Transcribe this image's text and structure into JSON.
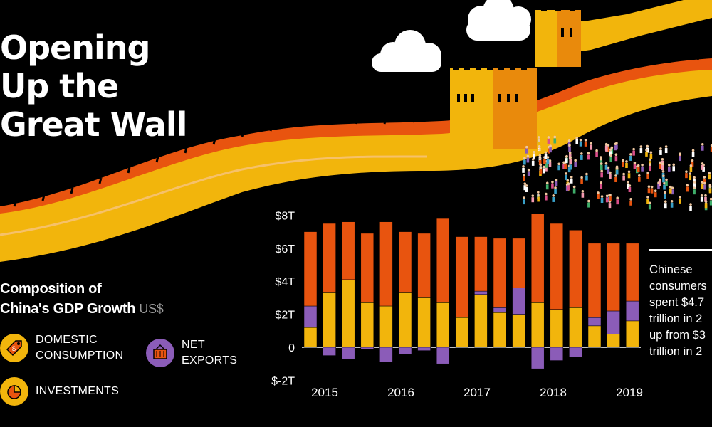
{
  "title": {
    "line1": "Opening",
    "line2": "Up the",
    "line3": "Great Wall"
  },
  "subtitle": {
    "line1": "Composition of",
    "line2": "China's GDP Growth",
    "unit": "US$"
  },
  "legend": [
    {
      "key": "domestic",
      "line1": "DOMESTIC",
      "line2": "CONSUMPTION",
      "color": "#e8540f",
      "icon": "price-tag-icon"
    },
    {
      "key": "net_exports",
      "line1": "NET",
      "line2": "EXPORTS",
      "color": "#8b5cb8",
      "icon": "shipping-container-icon"
    },
    {
      "key": "investments",
      "line1": "INVESTMENTS",
      "line2": "",
      "color": "#f2b50c",
      "icon": "pie-chart-icon"
    }
  ],
  "callout": {
    "line1": "Chinese",
    "line2": "consumers",
    "line3": "spent $4.7",
    "line4": "trillion in 2",
    "line5": "up from $3",
    "line6": "trillion in 2"
  },
  "chart_data": {
    "type": "bar",
    "stacked": true,
    "ylim": [
      -2,
      8
    ],
    "y_ticks": [
      {
        "value": 8,
        "label": "$8T"
      },
      {
        "value": 6,
        "label": "$6T"
      },
      {
        "value": 4,
        "label": "$4T"
      },
      {
        "value": 2,
        "label": "$2T"
      },
      {
        "value": 0,
        "label": "0"
      },
      {
        "value": -2,
        "label": "$-2T"
      }
    ],
    "x_year_labels": [
      "2015",
      "2016",
      "2017",
      "2018",
      "2019"
    ],
    "series": [
      {
        "name": "INVESTMENTS",
        "color": "#f2b50c",
        "values": [
          1.2,
          3.3,
          4.1,
          2.7,
          2.5,
          3.3,
          3.0,
          2.7,
          1.8,
          3.2,
          2.1,
          2.0,
          2.7,
          2.3,
          2.4,
          1.3,
          0.8,
          1.6
        ]
      },
      {
        "name": "NET EXPORTS",
        "color": "#8b5cb8",
        "values": [
          1.3,
          -0.5,
          -0.7,
          -0.1,
          -0.9,
          -0.4,
          -0.2,
          -1.0,
          0.0,
          0.2,
          0.3,
          1.6,
          -1.3,
          -0.8,
          -0.6,
          0.5,
          1.4,
          1.2
        ]
      },
      {
        "name": "DOMESTIC CONSUMPTION",
        "color": "#e8540f",
        "values": [
          4.5,
          4.2,
          3.5,
          4.2,
          5.1,
          3.7,
          3.9,
          5.1,
          4.9,
          3.3,
          4.2,
          3.0,
          5.4,
          5.2,
          4.7,
          4.5,
          4.1,
          3.5
        ]
      }
    ]
  }
}
